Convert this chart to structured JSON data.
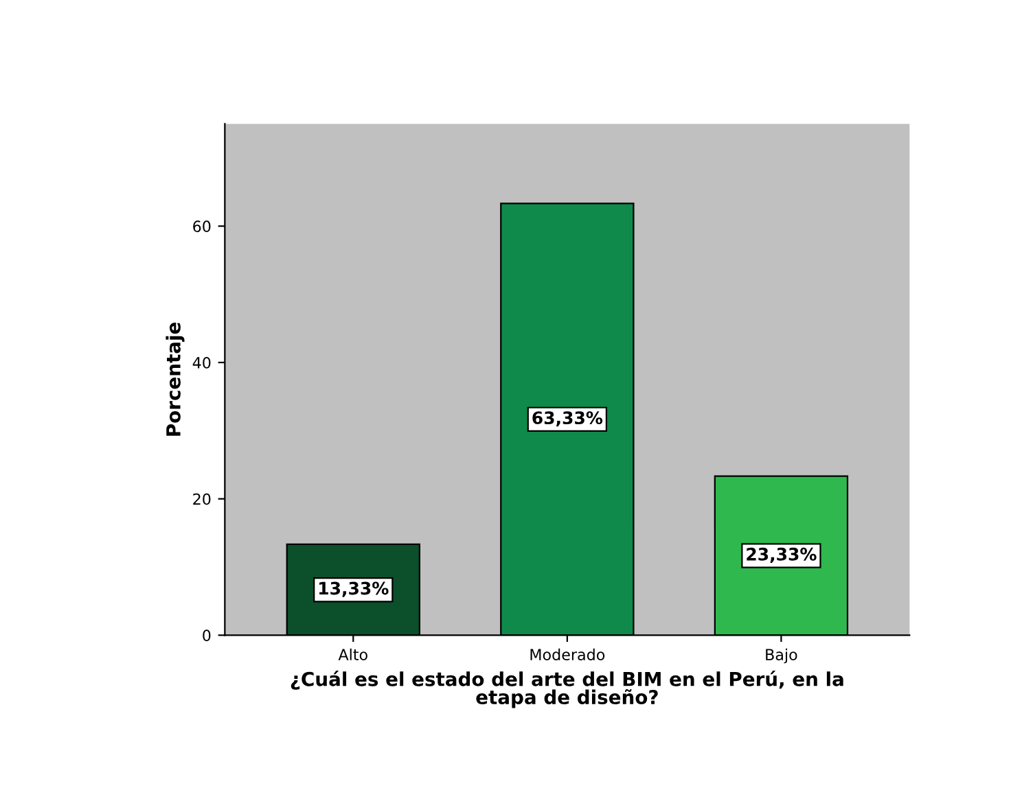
{
  "chart_data": {
    "type": "bar",
    "xlabel": "¿Cuál es el estado del arte del BIM en el Perú, en la\netapa de diseño?",
    "ylabel": "Porcentaje",
    "categories": [
      "Alto",
      "Moderado",
      "Bajo"
    ],
    "values": [
      13.33,
      63.33,
      23.33
    ],
    "colors": [
      "#0b4f2b",
      "#0f8a4a",
      "#2fb84e"
    ],
    "value_labels": [
      "13,33%",
      "63,33%",
      "23,33%"
    ],
    "ylim": [
      0,
      75
    ],
    "yticks": [
      0,
      20,
      40,
      60
    ],
    "grid": false,
    "legend": false
  }
}
